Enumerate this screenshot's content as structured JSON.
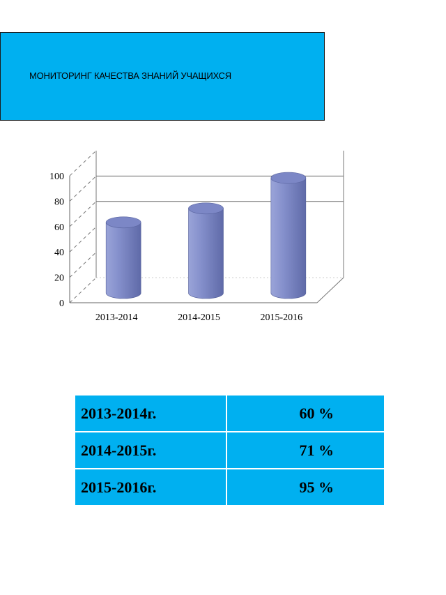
{
  "title": "МОНИТОРИНГ КАЧЕСТВА ЗНАНИЙ УЧАЩИХСЯ",
  "colors": {
    "accent": "#00b0f0",
    "bar": "#7a86c4"
  },
  "chart_data": {
    "type": "bar",
    "style": "3d-cylinder",
    "categories": [
      "2013-2014",
      "2014-2015",
      "2015-2016"
    ],
    "values": [
      60,
      71,
      95
    ],
    "title": "",
    "xlabel": "",
    "ylabel": "",
    "ylim": [
      0,
      100
    ],
    "yticks": [
      0,
      20,
      40,
      60,
      80,
      100
    ],
    "legend": "none"
  },
  "table": {
    "rows": [
      {
        "year": "2013-2014г.",
        "value": "60 %"
      },
      {
        "year": "2014-2015г.",
        "value": "71 %"
      },
      {
        "year": "2015-2016г.",
        "value": "95 %"
      }
    ]
  }
}
